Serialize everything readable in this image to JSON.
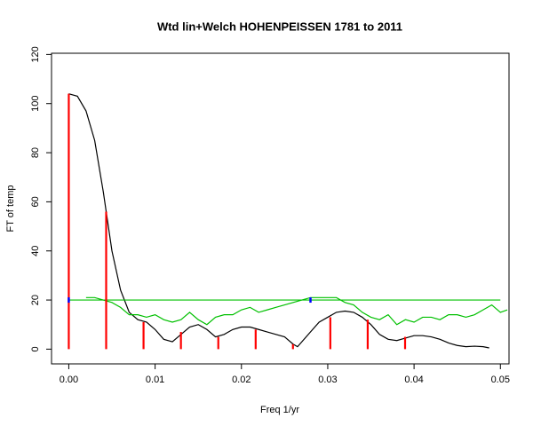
{
  "chart_data": {
    "type": "line",
    "title": "Wtd lin+Welch HOHENPEISSEN 1781 to 2011",
    "x_label": "Freq 1/yr",
    "y_label": "FT of temp",
    "xlim": [
      -0.002,
      0.051
    ],
    "ylim": [
      -6,
      120.5
    ],
    "xticks": [
      {
        "value": 0,
        "label": "0.00"
      },
      {
        "value": 0.01,
        "label": "0.01"
      },
      {
        "value": 0.02,
        "label": "0.02"
      },
      {
        "value": 0.03,
        "label": "0.03"
      },
      {
        "value": 0.04,
        "label": "0.04"
      },
      {
        "value": 0.05,
        "label": "0.05"
      }
    ],
    "yticks": [
      0,
      20,
      40,
      60,
      80,
      100,
      120
    ],
    "series": [
      {
        "type": "line",
        "color": "#000000",
        "x": [
          0,
          0.001,
          0.002,
          0.003,
          0.004,
          0.005,
          0.006,
          0.007,
          0.008,
          0.009,
          0.01,
          0.011,
          0.012,
          0.013,
          0.014,
          0.015,
          0.016,
          0.017,
          0.018,
          0.019,
          0.02,
          0.021,
          0.022,
          0.023,
          0.024,
          0.025,
          0.026,
          0.0265,
          0.027,
          0.028,
          0.029,
          0.03,
          0.031,
          0.032,
          0.033,
          0.034,
          0.035,
          0.036,
          0.037,
          0.038,
          0.039,
          0.04,
          0.041,
          0.042,
          0.043,
          0.044,
          0.045,
          0.046,
          0.047,
          0.048,
          0.0487
        ],
        "values": [
          104,
          103,
          97,
          85,
          64,
          40,
          24,
          15,
          12,
          11,
          8,
          4,
          3,
          6,
          9,
          10,
          8,
          5,
          6,
          8,
          9,
          9,
          8,
          7,
          6,
          5,
          2,
          1,
          3,
          7,
          11,
          13,
          15,
          15.5,
          15,
          13,
          10,
          6,
          4,
          3.5,
          4.5,
          5.5,
          5.5,
          5,
          4,
          2.5,
          1.5,
          1,
          1.2,
          1,
          0.5
        ]
      },
      {
        "type": "line",
        "color": "#00c000",
        "x": [
          0.002,
          0.003,
          0.004,
          0.005,
          0.006,
          0.007,
          0.008,
          0.009,
          0.01,
          0.011,
          0.012,
          0.013,
          0.014,
          0.015,
          0.016,
          0.017,
          0.018,
          0.019,
          0.02,
          0.021,
          0.022,
          0.023,
          0.024,
          0.025,
          0.026,
          0.027,
          0.028,
          0.029,
          0.03,
          0.031,
          0.032,
          0.033,
          0.034,
          0.035,
          0.036,
          0.037,
          0.038,
          0.039,
          0.04,
          0.041,
          0.042,
          0.043,
          0.044,
          0.045,
          0.046,
          0.047,
          0.048,
          0.049,
          0.05,
          0.0508
        ],
        "values": [
          21,
          21,
          20,
          19,
          17,
          14,
          14,
          13,
          14,
          12,
          11,
          12,
          15,
          12,
          10,
          13,
          14,
          14,
          16,
          17,
          15,
          16,
          17,
          18,
          19,
          20,
          21,
          21,
          21,
          21,
          19,
          18,
          15,
          13,
          12,
          14,
          10,
          12,
          11,
          13,
          13,
          12,
          14,
          14,
          13,
          14,
          16,
          18,
          15,
          16
        ]
      },
      {
        "type": "line",
        "color": "#00c000",
        "x": [
          0,
          0.05
        ],
        "values": [
          20,
          20
        ]
      },
      {
        "type": "spike",
        "color": "#ff0000",
        "x": [
          0,
          0.00433,
          0.00866,
          0.01299,
          0.01732,
          0.02165,
          0.02597,
          0.0303,
          0.03463,
          0.03896
        ],
        "values": [
          104,
          56,
          11,
          7,
          5,
          8,
          2,
          13,
          12,
          5
        ]
      },
      {
        "type": "point",
        "color": "#0000ff",
        "x": [
          0,
          0.028
        ],
        "values": [
          20,
          20
        ]
      }
    ]
  }
}
